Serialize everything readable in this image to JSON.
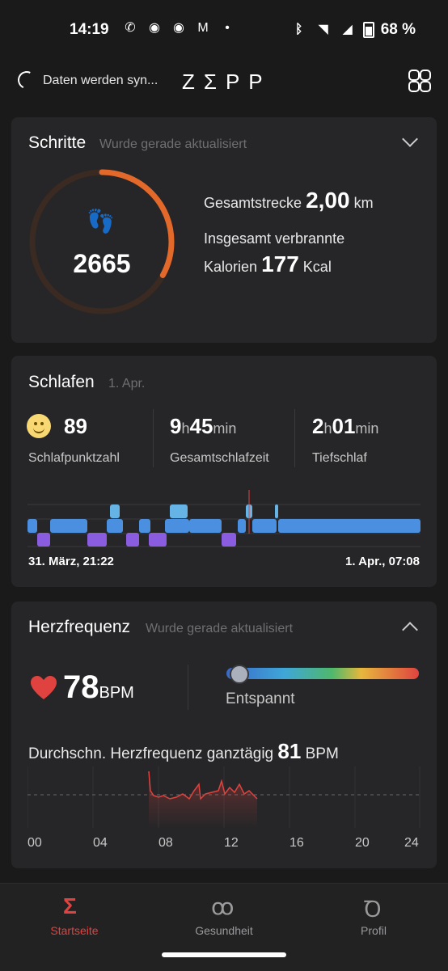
{
  "status_bar": {
    "time": "14:19",
    "battery": "68 %",
    "icons": [
      "whatsapp-icon",
      "discord-icon",
      "discord-icon",
      "gmail-icon",
      "dot-icon"
    ]
  },
  "header": {
    "sync_text": "Daten werden syn...",
    "logo": "ZΣPP"
  },
  "steps": {
    "title": "Schritte",
    "subtitle": "Wurde gerade aktualisiert",
    "count": "2665",
    "progress": 0.33,
    "distance_label": "Gesamtstrecke",
    "distance_value": "2,00",
    "distance_unit": "km",
    "calories_label_1": "Insgesamt verbrannte",
    "calories_label_2": "Kalorien",
    "calories_value": "177",
    "calories_unit": "Kcal",
    "accent": "#e2692a"
  },
  "sleep": {
    "title": "Schlafen",
    "date": "1. Apr.",
    "score": "89",
    "score_label": "Schlafpunktzahl",
    "total_h": "9",
    "total_m": "45",
    "total_label": "Gesamtschlafzeit",
    "deep_h": "2",
    "deep_m": "01",
    "deep_label": "Tiefschlaf",
    "h_unit": "h",
    "min_unit": "min",
    "start": "31. März, 21:22",
    "end": "1. Apr., 07:08"
  },
  "heart": {
    "title": "Herzfrequenz",
    "subtitle": "Wurde gerade aktualisiert",
    "bpm": "78",
    "bpm_unit": "BPM",
    "zone": "Entspannt",
    "avg_label": "Durchschn. Herzfrequenz ganztägig",
    "avg_value": "81",
    "avg_unit": "BPM",
    "x_ticks": [
      "00",
      "04",
      "08",
      "12",
      "16",
      "20",
      "24"
    ],
    "accent": "#e0433f"
  },
  "nav": [
    {
      "label": "Startseite",
      "active": true
    },
    {
      "label": "Gesundheit",
      "active": false
    },
    {
      "label": "Profil",
      "active": false
    }
  ]
}
